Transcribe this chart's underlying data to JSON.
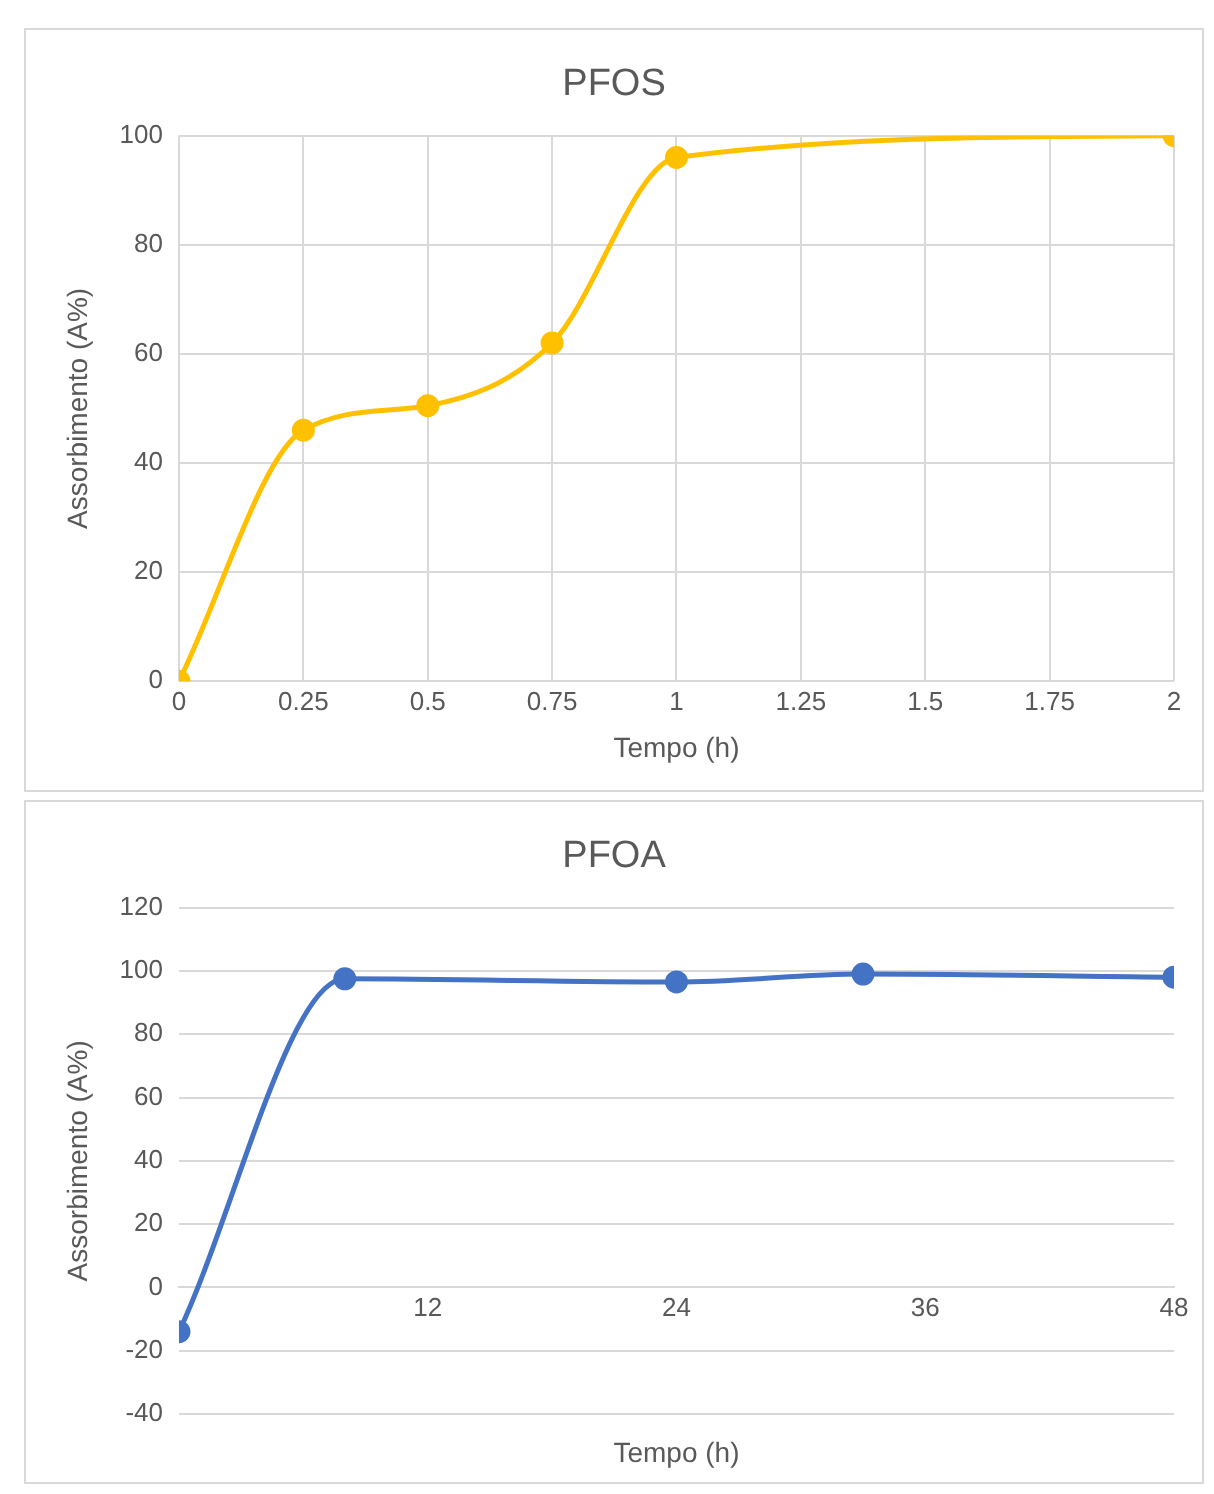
{
  "chart_data": [
    {
      "type": "line",
      "title": "PFOS",
      "xlabel": "Tempo (h)",
      "ylabel": "Assorbimento (A%)",
      "x": [
        0,
        0.25,
        0.5,
        0.75,
        1,
        2
      ],
      "values": [
        0,
        46,
        50.5,
        62,
        96,
        100
      ],
      "color": "#ffc000",
      "xlim": [
        0,
        2
      ],
      "xticks": [
        0,
        0.25,
        0.5,
        0.75,
        1,
        1.25,
        1.5,
        1.75,
        2
      ],
      "ylim": [
        0,
        100
      ],
      "yticks": [
        0,
        20,
        40,
        60,
        80,
        100
      ],
      "grid": true,
      "marker": "circle"
    },
    {
      "type": "line",
      "title": "PFOA",
      "xlabel": "Tempo (h)",
      "ylabel": "Assorbimento (A%)",
      "x": [
        0,
        8,
        24,
        33,
        48
      ],
      "values": [
        -14,
        97.5,
        96.5,
        99,
        98
      ],
      "color": "#4472c4",
      "xlim": [
        0,
        48
      ],
      "xticks": [
        12,
        24,
        36,
        48
      ],
      "ylim": [
        -40,
        120
      ],
      "yticks": [
        -40,
        -20,
        0,
        20,
        40,
        60,
        80,
        100,
        120
      ],
      "grid": "y",
      "marker": "circle"
    }
  ]
}
